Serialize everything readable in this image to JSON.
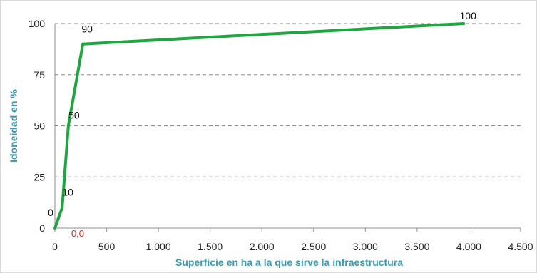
{
  "chart_data": {
    "type": "line",
    "title": "",
    "xlabel": "Superficie en ha a la que sirve la infraestructura",
    "ylabel": "Idoneidad en %",
    "xlim": [
      0,
      4500
    ],
    "ylim": [
      0,
      100
    ],
    "x_ticks": [
      "0",
      "500",
      "1.000",
      "1.500",
      "2.000",
      "2.500",
      "3.000",
      "3.500",
      "4.000",
      "4.500"
    ],
    "x_tick_values": [
      0,
      500,
      1000,
      1500,
      2000,
      2500,
      3000,
      3500,
      4000,
      4500
    ],
    "y_ticks": [
      "0",
      "25",
      "50",
      "75",
      "100"
    ],
    "y_tick_values": [
      0,
      25,
      50,
      75,
      100
    ],
    "grid": "horizontal-dashed",
    "series": [
      {
        "x": [
          0,
          70,
          130,
          270,
          3950
        ],
        "y": [
          0,
          10,
          50,
          90,
          100
        ],
        "labels": [
          "0",
          "10",
          "50",
          "90",
          "100"
        ],
        "color": "#1fa640"
      }
    ],
    "origin_label": "0,0",
    "origin_label_color": "#e0201b"
  }
}
